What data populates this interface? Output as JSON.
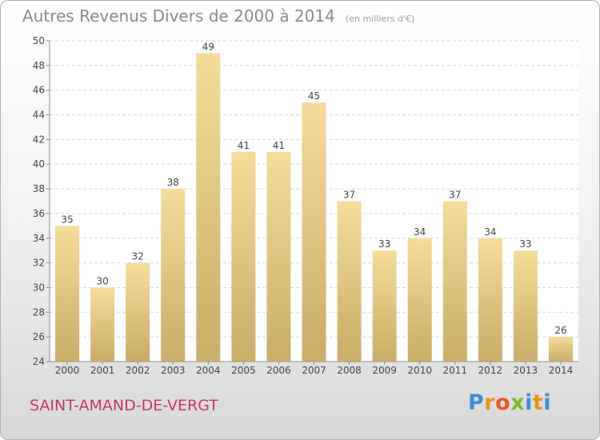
{
  "chart_data": {
    "type": "bar",
    "title": "Autres Revenus Divers de 2000 à 2014",
    "unit_note": "(en milliers d'€)",
    "categories": [
      "2000",
      "2001",
      "2002",
      "2003",
      "2004",
      "2005",
      "2006",
      "2007",
      "2008",
      "2009",
      "2010",
      "2011",
      "2012",
      "2013",
      "2014"
    ],
    "values": [
      35,
      30,
      32,
      38,
      49,
      41,
      41,
      45,
      37,
      33,
      34,
      37,
      34,
      33,
      26
    ],
    "ylim": [
      24,
      50
    ],
    "yticks": [
      24,
      26,
      28,
      30,
      32,
      34,
      36,
      38,
      40,
      42,
      44,
      46,
      48,
      50
    ],
    "grid": true,
    "bar_color_top": "#f5dc9a",
    "bar_color_bottom": "#c9ad68"
  },
  "footer": {
    "commune": "SAINT-AMAND-DE-VERGT",
    "logo_letters": [
      "P",
      "r",
      "o",
      "x",
      "i",
      "t",
      "i"
    ]
  }
}
